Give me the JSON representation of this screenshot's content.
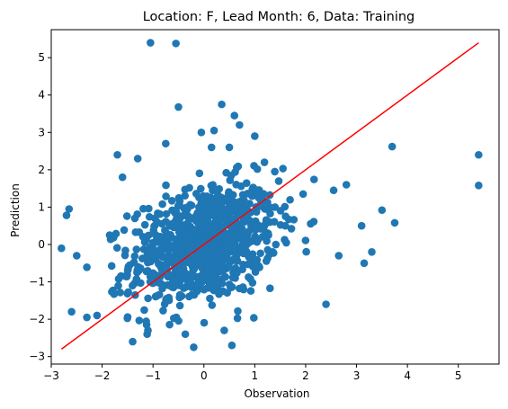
{
  "chart_data": {
    "type": "scatter",
    "title": "Location: F, Lead Month: 6, Data: Training",
    "xlabel": "Observation",
    "ylabel": "Prediction",
    "xlim": [
      -3.0,
      5.8
    ],
    "ylim": [
      -3.2,
      5.75
    ],
    "xticks": [
      -3,
      -2,
      -1,
      0,
      1,
      2,
      3,
      4,
      5
    ],
    "yticks": [
      -3,
      -2,
      -1,
      0,
      1,
      2,
      3,
      4,
      5
    ],
    "grid": false,
    "colors": {
      "points": "#1f77b4",
      "fit_line": "#ff0000",
      "axes": "#000000"
    },
    "fit_line": {
      "x": [
        -2.8,
        5.4
      ],
      "y": [
        -2.8,
        5.4
      ]
    },
    "outliers": [
      [
        -1.05,
        5.4
      ],
      [
        -0.55,
        5.38
      ],
      [
        -0.5,
        3.68
      ],
      [
        0.35,
        3.75
      ],
      [
        0.6,
        3.45
      ],
      [
        0.7,
        3.2
      ],
      [
        -0.05,
        3.0
      ],
      [
        0.2,
        3.05
      ],
      [
        1.0,
        2.9
      ],
      [
        0.5,
        2.6
      ],
      [
        0.15,
        2.6
      ],
      [
        -0.75,
        2.7
      ],
      [
        3.7,
        2.62
      ],
      [
        5.4,
        2.4
      ],
      [
        5.4,
        1.58
      ],
      [
        2.8,
        1.6
      ],
      [
        3.5,
        0.92
      ],
      [
        3.75,
        0.58
      ],
      [
        3.1,
        0.5
      ],
      [
        3.3,
        -0.2
      ],
      [
        3.15,
        -0.5
      ],
      [
        2.65,
        -0.3
      ],
      [
        2.4,
        -1.6
      ],
      [
        -2.8,
        -0.1
      ],
      [
        -2.65,
        0.95
      ],
      [
        -2.7,
        0.78
      ],
      [
        -2.5,
        -0.3
      ],
      [
        -2.3,
        -1.95
      ],
      [
        -2.6,
        -1.8
      ],
      [
        -2.1,
        -1.9
      ],
      [
        -1.4,
        -2.6
      ],
      [
        -1.1,
        -2.3
      ],
      [
        -0.2,
        -2.75
      ],
      [
        0.55,
        -2.7
      ],
      [
        0.4,
        -2.3
      ],
      [
        -1.7,
        2.4
      ],
      [
        -1.3,
        2.3
      ],
      [
        -1.6,
        1.8
      ],
      [
        1.95,
        1.35
      ],
      [
        2.55,
        1.45
      ]
    ],
    "cluster": {
      "n": 900,
      "center": [
        0.0,
        0.0
      ],
      "std": [
        0.72,
        0.8
      ],
      "correlation": 0.3
    }
  }
}
